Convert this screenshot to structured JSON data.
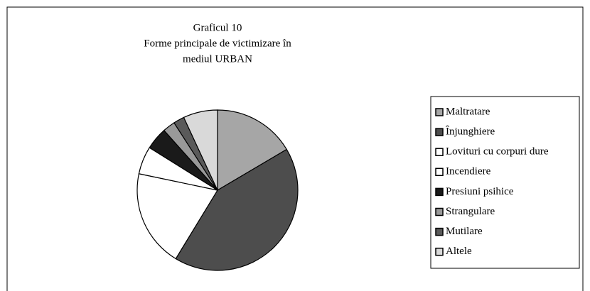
{
  "chart_data": {
    "type": "pie",
    "title": [
      "Graficul 10",
      "Forme principale de victimizare în",
      "mediul URBAN"
    ],
    "categories": [
      "Maltratare",
      "Înjunghiere",
      "Lovituri cu corpuri dure",
      "Incendiere",
      "Presiuni psihice",
      "Strangulare",
      "Mutilare",
      "Altele"
    ],
    "values": [
      16.5,
      42.2,
      19.6,
      5.6,
      4.5,
      2.5,
      2.2,
      6.9
    ],
    "colors": [
      "#a6a6a6",
      "#4d4d4d",
      "#ffffff",
      "#ffffff",
      "#1a1a1a",
      "#999999",
      "#5a5a5a",
      "#d9d9d9"
    ],
    "legend": "right"
  }
}
